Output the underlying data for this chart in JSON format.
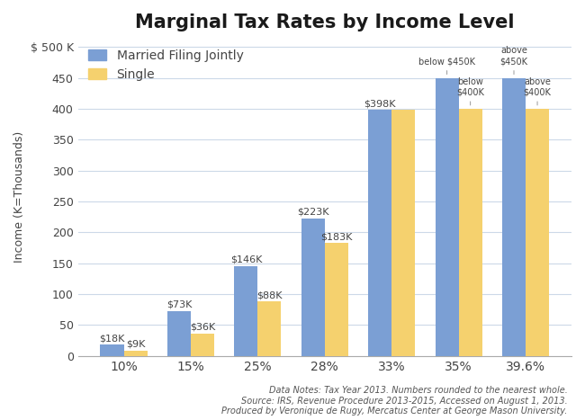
{
  "title": "Marginal Tax Rates by Income Level",
  "ylabel": "Income (K=Thousands)",
  "background_color": "#ffffff",
  "bar_color_married": "#7b9fd4",
  "bar_color_single": "#f5d16e",
  "categories": [
    "10%",
    "15%",
    "25%",
    "28%",
    "33%",
    "35%",
    "39.6%"
  ],
  "married_values": [
    18,
    73,
    146,
    223,
    398,
    450,
    450
  ],
  "single_values": [
    9,
    36,
    88,
    183,
    398,
    400,
    400
  ],
  "married_labels": [
    "$18K",
    "$73K",
    "$146K",
    "$223K",
    "$398K",
    null,
    null
  ],
  "single_labels": [
    "$9K",
    "$36K",
    "$88K",
    "$183K",
    null,
    null,
    null
  ],
  "married_top_labels": [
    null,
    null,
    null,
    null,
    null,
    "below $450K",
    "above\n$450K"
  ],
  "single_top_labels": [
    null,
    null,
    null,
    null,
    null,
    "below\n$400K",
    "above\n$400K"
  ],
  "ylim": [
    0,
    515
  ],
  "yticks": [
    0,
    50,
    100,
    150,
    200,
    250,
    300,
    350,
    400,
    450,
    500
  ],
  "ytick_labels": [
    "0",
    "50",
    "100",
    "150",
    "200",
    "250",
    "300",
    "350",
    "400",
    "450",
    "$ 500 K"
  ],
  "footer": "Data Notes: Tax Year 2013. Numbers rounded to the nearest whole.\nSource: IRS, Revenue Procedure 2013-2015, Accessed on August 1, 2013.\nProduced by Veronique de Rugy, Mercatus Center at George Mason University.",
  "legend_married": "Married Filing Jointly",
  "legend_single": "Single",
  "bar_width": 0.35,
  "title_fontsize": 15,
  "axis_label_fontsize": 9,
  "tick_fontsize": 9,
  "bar_label_fontsize": 8,
  "footer_fontsize": 7,
  "grid_color": "#ccd9e8",
  "text_color": "#444444"
}
